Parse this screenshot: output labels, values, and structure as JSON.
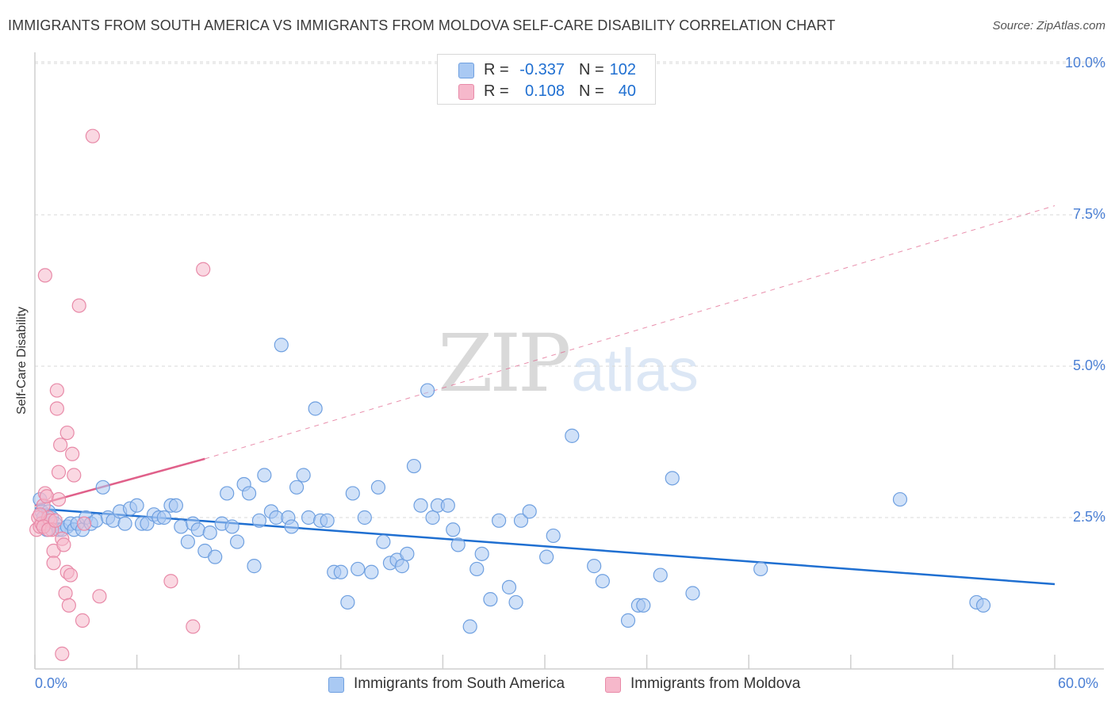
{
  "title": "IMMIGRANTS FROM SOUTH AMERICA VS IMMIGRANTS FROM MOLDOVA SELF-CARE DISABILITY CORRELATION CHART",
  "source": "Source: ZipAtlas.com",
  "watermark": {
    "zip": "ZIP",
    "atlas": "atlas"
  },
  "legend_top": {
    "rows": [
      {
        "r_label": "R =",
        "r_value": "-0.337",
        "n_label": "N =",
        "n_value": "102",
        "color": "#a9c9f3"
      },
      {
        "r_label": "R =",
        "r_value": "0.108",
        "n_label": "N =",
        "n_value": "40",
        "color": "#f6b8cb"
      }
    ]
  },
  "colors": {
    "blue_fill": "#a9c9f3",
    "blue_stroke": "#6fa0e0",
    "blue_line": "#1f6fd1",
    "pink_fill": "#f6b8cb",
    "pink_stroke": "#e88aa8",
    "pink_line": "#e0608a",
    "tick_text": "#4a7fd4",
    "grid": "#d8d8d8"
  },
  "chart_data": {
    "type": "scatter",
    "title": "IMMIGRANTS FROM SOUTH AMERICA VS IMMIGRANTS FROM MOLDOVA SELF-CARE DISABILITY CORRELATION CHART",
    "xlabel": "",
    "ylabel": "Self-Care Disability",
    "xlim": [
      0,
      60
    ],
    "ylim": [
      0,
      10.5
    ],
    "x_tick_labels": [
      "0.0%",
      "60.0%"
    ],
    "y_ticks": [
      2.5,
      5.0,
      7.5,
      10.0
    ],
    "y_tick_labels": [
      "2.5%",
      "5.0%",
      "7.5%",
      "10.0%"
    ],
    "grid": true,
    "legend_position": "bottom",
    "series": [
      {
        "name": "Immigrants from South America",
        "color": "#a9c9f3",
        "trend": {
          "x": [
            0,
            60
          ],
          "y": [
            2.65,
            1.4
          ],
          "style": "solid"
        },
        "points": [
          [
            0.3,
            2.8
          ],
          [
            0.4,
            2.6
          ],
          [
            0.5,
            2.5
          ],
          [
            0.6,
            2.4
          ],
          [
            0.7,
            2.3
          ],
          [
            0.8,
            2.6
          ],
          [
            1.0,
            2.5
          ],
          [
            1.2,
            2.4
          ],
          [
            1.4,
            2.3
          ],
          [
            1.6,
            2.3
          ],
          [
            1.9,
            2.35
          ],
          [
            2.1,
            2.4
          ],
          [
            2.3,
            2.3
          ],
          [
            2.5,
            2.4
          ],
          [
            2.8,
            2.3
          ],
          [
            3.0,
            2.5
          ],
          [
            3.3,
            2.4
          ],
          [
            3.6,
            2.45
          ],
          [
            4.0,
            3.0
          ],
          [
            4.3,
            2.5
          ],
          [
            4.6,
            2.45
          ],
          [
            5.0,
            2.6
          ],
          [
            5.3,
            2.4
          ],
          [
            5.6,
            2.65
          ],
          [
            6.0,
            2.7
          ],
          [
            6.3,
            2.4
          ],
          [
            6.6,
            2.4
          ],
          [
            7.0,
            2.55
          ],
          [
            7.3,
            2.5
          ],
          [
            7.6,
            2.5
          ],
          [
            8.0,
            2.7
          ],
          [
            8.3,
            2.7
          ],
          [
            8.6,
            2.35
          ],
          [
            9.0,
            2.1
          ],
          [
            9.3,
            2.4
          ],
          [
            9.6,
            2.3
          ],
          [
            10.0,
            1.95
          ],
          [
            10.3,
            2.25
          ],
          [
            10.6,
            1.85
          ],
          [
            11.0,
            2.4
          ],
          [
            11.3,
            2.9
          ],
          [
            11.6,
            2.35
          ],
          [
            11.9,
            2.1
          ],
          [
            12.3,
            3.05
          ],
          [
            12.6,
            2.9
          ],
          [
            12.9,
            1.7
          ],
          [
            13.2,
            2.45
          ],
          [
            13.5,
            3.2
          ],
          [
            13.9,
            2.6
          ],
          [
            14.2,
            2.5
          ],
          [
            14.5,
            5.35
          ],
          [
            14.9,
            2.5
          ],
          [
            15.1,
            2.35
          ],
          [
            15.4,
            3.0
          ],
          [
            15.8,
            3.2
          ],
          [
            16.1,
            2.5
          ],
          [
            16.5,
            4.3
          ],
          [
            16.8,
            2.45
          ],
          [
            17.2,
            2.45
          ],
          [
            17.6,
            1.6
          ],
          [
            18.0,
            1.6
          ],
          [
            18.4,
            1.1
          ],
          [
            18.7,
            2.9
          ],
          [
            19.0,
            1.65
          ],
          [
            19.4,
            2.5
          ],
          [
            19.8,
            1.6
          ],
          [
            20.2,
            3.0
          ],
          [
            20.5,
            2.1
          ],
          [
            20.9,
            1.75
          ],
          [
            21.3,
            1.8
          ],
          [
            21.6,
            1.7
          ],
          [
            21.9,
            1.9
          ],
          [
            22.3,
            3.35
          ],
          [
            22.7,
            2.7
          ],
          [
            23.1,
            4.6
          ],
          [
            23.4,
            2.5
          ],
          [
            23.7,
            2.7
          ],
          [
            24.3,
            2.7
          ],
          [
            24.6,
            2.3
          ],
          [
            24.9,
            2.05
          ],
          [
            25.6,
            0.7
          ],
          [
            26.0,
            1.65
          ],
          [
            26.3,
            1.9
          ],
          [
            26.8,
            1.15
          ],
          [
            27.3,
            2.45
          ],
          [
            27.9,
            1.35
          ],
          [
            28.3,
            1.1
          ],
          [
            28.6,
            2.45
          ],
          [
            29.1,
            2.6
          ],
          [
            30.1,
            1.85
          ],
          [
            30.5,
            2.2
          ],
          [
            31.6,
            3.85
          ],
          [
            32.9,
            1.7
          ],
          [
            33.4,
            1.45
          ],
          [
            34.9,
            0.8
          ],
          [
            35.5,
            1.05
          ],
          [
            35.8,
            1.05
          ],
          [
            36.8,
            1.55
          ],
          [
            37.5,
            3.15
          ],
          [
            38.7,
            1.25
          ],
          [
            42.7,
            1.65
          ],
          [
            50.9,
            2.8
          ],
          [
            55.4,
            1.1
          ],
          [
            55.8,
            1.05
          ]
        ]
      },
      {
        "name": "Immigrants from Moldova",
        "color": "#f6b8cb",
        "trend": {
          "x": [
            0,
            10
          ],
          "y": [
            2.7,
            3.47
          ],
          "style": "solid",
          "extended_x": [
            10,
            60
          ],
          "extended_y": [
            3.47,
            7.65
          ],
          "extended_style": "dashed"
        },
        "points": [
          [
            0.1,
            2.3
          ],
          [
            0.2,
            2.5
          ],
          [
            0.3,
            2.35
          ],
          [
            0.4,
            2.4
          ],
          [
            0.5,
            2.7
          ],
          [
            0.6,
            2.9
          ],
          [
            0.7,
            2.85
          ],
          [
            0.8,
            2.5
          ],
          [
            0.9,
            2.45
          ],
          [
            1.0,
            2.3
          ],
          [
            0.6,
            6.5
          ],
          [
            1.1,
            1.95
          ],
          [
            1.1,
            1.75
          ],
          [
            1.3,
            4.6
          ],
          [
            1.3,
            4.3
          ],
          [
            1.4,
            2.8
          ],
          [
            1.4,
            3.25
          ],
          [
            1.5,
            3.7
          ],
          [
            1.6,
            2.15
          ],
          [
            1.7,
            2.05
          ],
          [
            1.9,
            3.9
          ],
          [
            1.9,
            1.6
          ],
          [
            1.8,
            1.25
          ],
          [
            2.0,
            1.05
          ],
          [
            2.1,
            1.55
          ],
          [
            2.2,
            3.55
          ],
          [
            2.3,
            3.2
          ],
          [
            2.6,
            6.0
          ],
          [
            2.8,
            0.8
          ],
          [
            2.9,
            2.4
          ],
          [
            3.4,
            8.8
          ],
          [
            3.8,
            1.2
          ],
          [
            1.6,
            0.25
          ],
          [
            8.0,
            1.45
          ],
          [
            9.3,
            0.7
          ],
          [
            9.9,
            6.6
          ],
          [
            0.3,
            2.55
          ],
          [
            0.5,
            2.35
          ],
          [
            0.8,
            2.3
          ],
          [
            1.2,
            2.45
          ]
        ]
      }
    ]
  },
  "x_tick_labels": {
    "left": "0.0%",
    "right": "60.0%"
  },
  "ylabel": "Self-Care Disability",
  "legend_bottom": [
    {
      "label": "Immigrants from South America",
      "color": "#a9c9f3"
    },
    {
      "label": "Immigrants from Moldova",
      "color": "#f6b8cb"
    }
  ]
}
